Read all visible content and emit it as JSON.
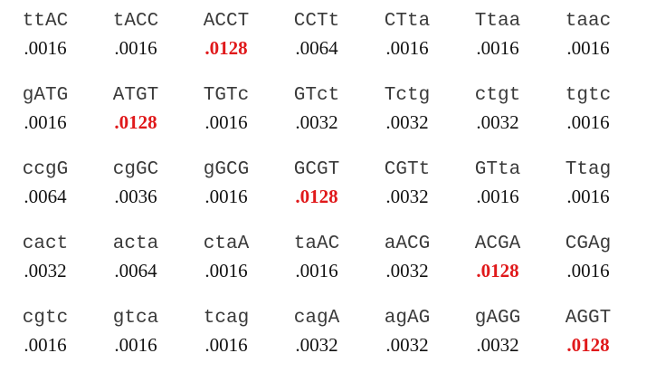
{
  "colors": {
    "text": "#111111",
    "sequence": "#3a3a3a",
    "highlight": "#e0191b"
  },
  "rows": [
    {
      "cells": [
        {
          "seq": "ttAC",
          "value": ".0016",
          "highlight": false
        },
        {
          "seq": "tACC",
          "value": ".0016",
          "highlight": false
        },
        {
          "seq": "ACCT",
          "value": ".0128",
          "highlight": true
        },
        {
          "seq": "CCTt",
          "value": ".0064",
          "highlight": false
        },
        {
          "seq": "CTta",
          "value": ".0016",
          "highlight": false
        },
        {
          "seq": "Ttaa",
          "value": ".0016",
          "highlight": false
        },
        {
          "seq": "taac",
          "value": ".0016",
          "highlight": false
        }
      ]
    },
    {
      "cells": [
        {
          "seq": "gATG",
          "value": ".0016",
          "highlight": false
        },
        {
          "seq": "ATGT",
          "value": ".0128",
          "highlight": true
        },
        {
          "seq": "TGTc",
          "value": ".0016",
          "highlight": false
        },
        {
          "seq": "GTct",
          "value": ".0032",
          "highlight": false
        },
        {
          "seq": "Tctg",
          "value": ".0032",
          "highlight": false
        },
        {
          "seq": "ctgt",
          "value": ".0032",
          "highlight": false
        },
        {
          "seq": "tgtc",
          "value": ".0016",
          "highlight": false
        }
      ]
    },
    {
      "cells": [
        {
          "seq": "ccgG",
          "value": ".0064",
          "highlight": false
        },
        {
          "seq": "cgGC",
          "value": ".0036",
          "highlight": false
        },
        {
          "seq": "gGCG",
          "value": ".0016",
          "highlight": false
        },
        {
          "seq": "GCGT",
          "value": ".0128",
          "highlight": true
        },
        {
          "seq": "CGTt",
          "value": ".0032",
          "highlight": false
        },
        {
          "seq": "GTta",
          "value": ".0016",
          "highlight": false
        },
        {
          "seq": "Ttag",
          "value": ".0016",
          "highlight": false
        }
      ]
    },
    {
      "cells": [
        {
          "seq": "cact",
          "value": ".0032",
          "highlight": false
        },
        {
          "seq": "acta",
          "value": ".0064",
          "highlight": false
        },
        {
          "seq": "ctaA",
          "value": ".0016",
          "highlight": false
        },
        {
          "seq": "taAC",
          "value": ".0016",
          "highlight": false
        },
        {
          "seq": "aACG",
          "value": ".0032",
          "highlight": false
        },
        {
          "seq": "ACGA",
          "value": ".0128",
          "highlight": true
        },
        {
          "seq": "CGAg",
          "value": ".0016",
          "highlight": false
        }
      ]
    },
    {
      "cells": [
        {
          "seq": "cgtc",
          "value": ".0016",
          "highlight": false
        },
        {
          "seq": "gtca",
          "value": ".0016",
          "highlight": false
        },
        {
          "seq": "tcag",
          "value": ".0016",
          "highlight": false
        },
        {
          "seq": "cagA",
          "value": ".0032",
          "highlight": false
        },
        {
          "seq": "agAG",
          "value": ".0032",
          "highlight": false
        },
        {
          "seq": "gAGG",
          "value": ".0032",
          "highlight": false
        },
        {
          "seq": "AGGT",
          "value": ".0128",
          "highlight": true
        }
      ]
    }
  ]
}
